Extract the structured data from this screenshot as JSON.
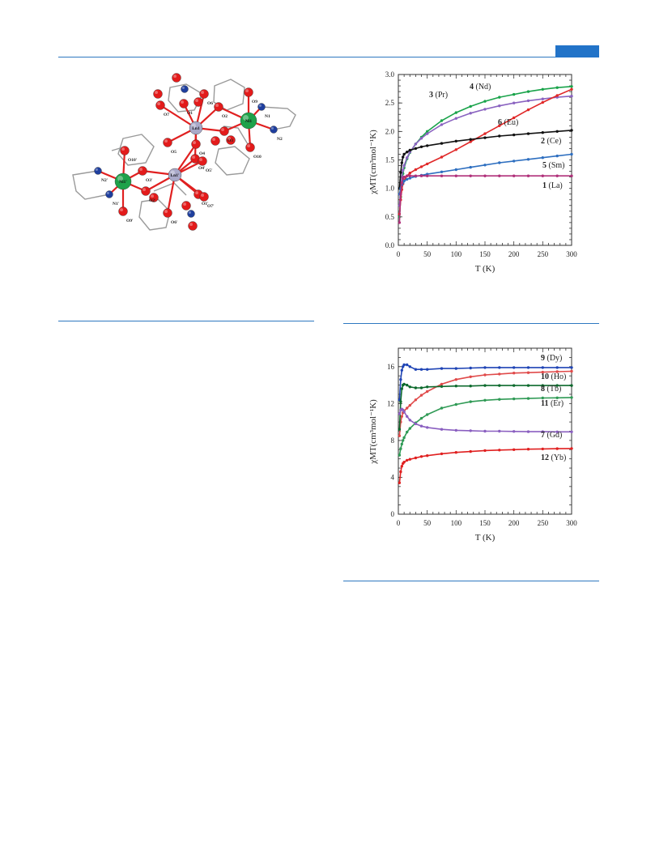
{
  "page": {
    "accent_color": "#2273c8",
    "rule_color": "#2e78c0"
  },
  "structure": {
    "atoms": [
      {
        "label": "O9",
        "kind": "O"
      },
      {
        "label": "O6",
        "kind": "O"
      },
      {
        "label": "O2",
        "kind": "O"
      },
      {
        "label": "O7",
        "kind": "O"
      },
      {
        "label": "O1",
        "kind": "O"
      },
      {
        "label": "N1",
        "kind": "N"
      },
      {
        "label": "Ni1",
        "kind": "Ni"
      },
      {
        "label": "N2",
        "kind": "N"
      },
      {
        "label": "O3",
        "kind": "O"
      },
      {
        "label": "Ln1",
        "kind": "Ln"
      },
      {
        "label": "O10",
        "kind": "O"
      },
      {
        "label": "O5",
        "kind": "O"
      },
      {
        "label": "O4",
        "kind": "O"
      },
      {
        "label": "O4'",
        "kind": "O"
      },
      {
        "label": "O5'",
        "kind": "O"
      },
      {
        "label": "O10'",
        "kind": "O"
      },
      {
        "label": "O3'",
        "kind": "O"
      },
      {
        "label": "N2'",
        "kind": "N"
      },
      {
        "label": "Ni1'",
        "kind": "Ni"
      },
      {
        "label": "Ln1'",
        "kind": "Ln"
      },
      {
        "label": "N1'",
        "kind": "N"
      },
      {
        "label": "O2'",
        "kind": "O"
      },
      {
        "label": "O1'",
        "kind": "O"
      },
      {
        "label": "O7'",
        "kind": "O"
      },
      {
        "label": "O9'",
        "kind": "O"
      },
      {
        "label": "O6'",
        "kind": "O"
      }
    ],
    "colors": {
      "O": "#e31b1b",
      "N": "#1f3f9e",
      "Ni": "#1fa24a",
      "Ln": "#a9a9c9",
      "bond": "#e02020",
      "frame": "#9a9a9a"
    }
  },
  "chart_data": [
    {
      "type": "line",
      "xlabel": "T (K)",
      "ylabel": "χMT(cm³mol⁻¹K)",
      "xlim": [
        0,
        300
      ],
      "ylim": [
        0.0,
        3.0
      ],
      "xticks": [
        0,
        50,
        100,
        150,
        200,
        250,
        300
      ],
      "yticks": [
        "0.0",
        "0.5",
        "1.0",
        "1.5",
        "2.0",
        "2.5",
        "3.0"
      ],
      "x": [
        2,
        4,
        6,
        8,
        10,
        15,
        20,
        30,
        40,
        50,
        75,
        100,
        125,
        150,
        175,
        200,
        225,
        250,
        275,
        300
      ],
      "series": [
        {
          "num": "4",
          "name": "(Nd)",
          "color": "#19a34a",
          "values": [
            0.5,
            0.85,
            1.1,
            1.26,
            1.36,
            1.52,
            1.63,
            1.78,
            1.9,
            2.0,
            2.19,
            2.33,
            2.44,
            2.53,
            2.6,
            2.65,
            2.7,
            2.74,
            2.77,
            2.79
          ]
        },
        {
          "num": "3",
          "name": "(Pr)",
          "color": "#8a63c0",
          "values": [
            0.7,
            1.0,
            1.2,
            1.32,
            1.4,
            1.54,
            1.64,
            1.78,
            1.88,
            1.96,
            2.12,
            2.23,
            2.32,
            2.39,
            2.45,
            2.5,
            2.54,
            2.57,
            2.6,
            2.62
          ]
        },
        {
          "num": "6",
          "name": "(Eu)",
          "color": "#e02828",
          "values": [
            0.55,
            0.8,
            0.98,
            1.08,
            1.14,
            1.22,
            1.27,
            1.33,
            1.38,
            1.43,
            1.55,
            1.68,
            1.82,
            1.96,
            2.1,
            2.24,
            2.38,
            2.51,
            2.63,
            2.74
          ]
        },
        {
          "num": "2",
          "name": "(Ce)",
          "color": "#111111",
          "values": [
            1.0,
            1.28,
            1.45,
            1.55,
            1.6,
            1.64,
            1.67,
            1.7,
            1.73,
            1.75,
            1.79,
            1.83,
            1.86,
            1.89,
            1.92,
            1.94,
            1.96,
            1.98,
            2.0,
            2.02
          ]
        },
        {
          "num": "5",
          "name": "(Sm)",
          "color": "#2e6fc0",
          "values": [
            0.9,
            1.0,
            1.06,
            1.1,
            1.13,
            1.16,
            1.18,
            1.21,
            1.23,
            1.25,
            1.29,
            1.33,
            1.37,
            1.41,
            1.45,
            1.48,
            1.51,
            1.54,
            1.57,
            1.6
          ]
        },
        {
          "num": "1",
          "name": "(La)",
          "color": "#b0307a",
          "values": [
            0.4,
            0.9,
            1.1,
            1.18,
            1.2,
            1.22,
            1.22,
            1.22,
            1.22,
            1.22,
            1.22,
            1.22,
            1.22,
            1.22,
            1.22,
            1.22,
            1.22,
            1.22,
            1.22,
            1.22
          ]
        }
      ]
    },
    {
      "type": "line",
      "xlabel": "T (K)",
      "ylabel": "χMT(cm³mol⁻¹K)",
      "xlim": [
        0,
        300
      ],
      "ylim": [
        0,
        18
      ],
      "xticks": [
        0,
        50,
        100,
        150,
        200,
        250,
        300
      ],
      "yticks": [
        "0",
        "4",
        "8",
        "12",
        "16"
      ],
      "x": [
        2,
        4,
        6,
        8,
        10,
        15,
        20,
        30,
        40,
        50,
        75,
        100,
        125,
        150,
        175,
        200,
        225,
        250,
        275,
        300
      ],
      "series": [
        {
          "num": "9",
          "name": "(Dy)",
          "color": "#1f44b5",
          "values": [
            12.4,
            14.6,
            15.6,
            16.0,
            16.2,
            16.2,
            16.0,
            15.7,
            15.7,
            15.7,
            15.8,
            15.8,
            15.85,
            15.9,
            15.9,
            15.9,
            15.9,
            15.9,
            15.9,
            15.9
          ]
        },
        {
          "num": "10",
          "name": "(Ho)",
          "color": "#e04a4a",
          "values": [
            8.5,
            10.0,
            10.6,
            11.0,
            11.2,
            11.5,
            11.8,
            12.4,
            12.9,
            13.3,
            14.1,
            14.6,
            14.9,
            15.1,
            15.2,
            15.3,
            15.35,
            15.4,
            15.45,
            15.5
          ]
        },
        {
          "num": "8",
          "name": "(Tb)",
          "color": "#0d6a2d",
          "values": [
            9.2,
            12.2,
            13.6,
            14.0,
            14.1,
            14.0,
            13.8,
            13.7,
            13.7,
            13.8,
            13.85,
            13.9,
            13.9,
            13.95,
            13.95,
            13.95,
            13.95,
            13.95,
            13.95,
            13.95
          ]
        },
        {
          "num": "11",
          "name": "(Er)",
          "color": "#2f9a55",
          "values": [
            6.4,
            7.1,
            7.6,
            8.0,
            8.3,
            8.9,
            9.3,
            9.9,
            10.4,
            10.8,
            11.5,
            11.9,
            12.2,
            12.35,
            12.45,
            12.5,
            12.55,
            12.6,
            12.62,
            12.65
          ]
        },
        {
          "num": "7",
          "name": "(Gd)",
          "color": "#8a5fc0",
          "values": [
            10.9,
            11.3,
            11.4,
            11.3,
            11.1,
            10.6,
            10.2,
            9.8,
            9.55,
            9.4,
            9.2,
            9.1,
            9.05,
            9.0,
            9.0,
            8.97,
            8.95,
            8.95,
            8.93,
            8.93
          ]
        },
        {
          "num": "12",
          "name": "(Yb)",
          "color": "#e02020",
          "values": [
            3.4,
            4.6,
            5.2,
            5.5,
            5.65,
            5.85,
            5.95,
            6.1,
            6.25,
            6.35,
            6.55,
            6.7,
            6.8,
            6.9,
            6.95,
            7.0,
            7.05,
            7.08,
            7.1,
            7.12
          ]
        }
      ]
    }
  ]
}
